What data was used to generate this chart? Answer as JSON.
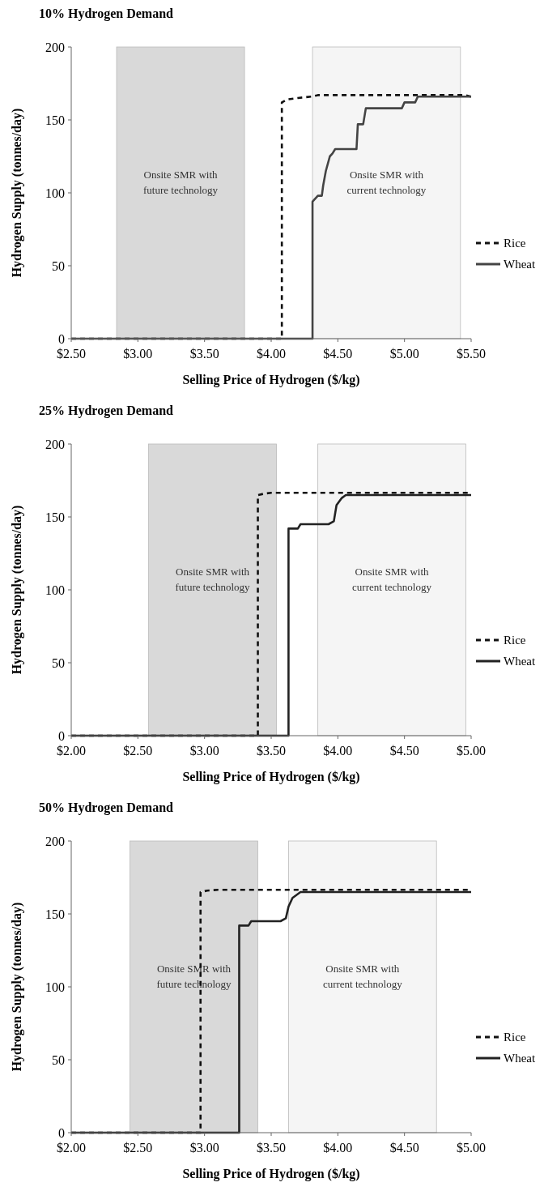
{
  "chart_data": [
    {
      "type": "line",
      "title": "10% Hydrogen Demand",
      "xlabel": "Selling Price of Hydrogen ($/kg)",
      "ylabel": "Hydrogen Supply (tonnes/day)",
      "xlim": [
        2.5,
        5.5
      ],
      "xticks": [
        {
          "value": 2.5,
          "label": "$2.50"
        },
        {
          "value": 3,
          "label": "$3.00"
        },
        {
          "value": 3.5,
          "label": "$3.50"
        },
        {
          "value": 4,
          "label": "$4.00"
        },
        {
          "value": 4.5,
          "label": "$4.50"
        },
        {
          "value": 5,
          "label": "$5.00"
        },
        {
          "value": 5.5,
          "label": "$5.50"
        }
      ],
      "ylim": [
        0,
        200
      ],
      "yticks": [
        0,
        50,
        100,
        150,
        200
      ],
      "grid": false,
      "legend": "right",
      "bands": [
        {
          "axis": "x",
          "from": 2.84,
          "to": 3.8,
          "label": "Onsite SMR with future technology",
          "color": "#d9d9d9"
        },
        {
          "axis": "x",
          "from": 4.31,
          "to": 5.42,
          "label": "Onsite SMR with current technology",
          "color": "#f5f5f5"
        }
      ],
      "series": [
        {
          "name": "Rice",
          "color": "#111111",
          "line_style": "dashed",
          "x": [
            2.5,
            4.08,
            4.08,
            4.12,
            4.2,
            4.3,
            4.35,
            5.45,
            5.5
          ],
          "values": [
            0,
            0,
            162,
            164,
            165,
            166,
            167,
            167,
            166
          ]
        },
        {
          "name": "Wheat",
          "color": "#444444",
          "line_style": "solid",
          "x": [
            2.5,
            4.31,
            4.31,
            4.35,
            4.38,
            4.39,
            4.41,
            4.44,
            4.46,
            4.48,
            4.64,
            4.65,
            4.69,
            4.71,
            4.98,
            5.0,
            5.08,
            5.1,
            5.5
          ],
          "values": [
            0,
            0,
            94,
            98,
            98,
            105,
            115,
            125,
            127,
            130,
            130,
            147,
            147,
            158,
            158,
            162,
            162,
            166,
            166
          ]
        }
      ]
    },
    {
      "type": "line",
      "title": "25% Hydrogen Demand",
      "xlabel": "Selling Price of Hydrogen ($/kg)",
      "ylabel": "Hydrogen Supply (tonnes/day)",
      "xlim": [
        2,
        5
      ],
      "xticks": [
        {
          "value": 2,
          "label": "$2.00"
        },
        {
          "value": 2.5,
          "label": "$2.50"
        },
        {
          "value": 3,
          "label": "$3.00"
        },
        {
          "value": 3.5,
          "label": "$3.50"
        },
        {
          "value": 4,
          "label": "$4.00"
        },
        {
          "value": 4.5,
          "label": "$4.50"
        },
        {
          "value": 5,
          "label": "$5.00"
        }
      ],
      "ylim": [
        0,
        200
      ],
      "yticks": [
        0,
        50,
        100,
        150,
        200
      ],
      "grid": false,
      "legend": "right",
      "bands": [
        {
          "axis": "x",
          "from": 2.58,
          "to": 3.54,
          "label": "Onsite SMR with future technology",
          "color": "#d9d9d9"
        },
        {
          "axis": "x",
          "from": 3.85,
          "to": 4.96,
          "label": "Onsite SMR with current technology",
          "color": "#f5f5f5"
        }
      ],
      "series": [
        {
          "name": "Rice",
          "color": "#111111",
          "line_style": "dashed",
          "x": [
            2,
            3.4,
            3.4,
            3.45,
            3.5,
            5
          ],
          "values": [
            0,
            0,
            165,
            166,
            166.5,
            166.5
          ]
        },
        {
          "name": "Wheat",
          "color": "#222222",
          "line_style": "solid",
          "x": [
            2,
            3.63,
            3.63,
            3.7,
            3.72,
            3.93,
            3.97,
            3.99,
            4.03,
            4.06,
            5
          ],
          "values": [
            0,
            0,
            142,
            142,
            145,
            145,
            147,
            158,
            163,
            165,
            165
          ]
        }
      ]
    },
    {
      "type": "line",
      "title": "50% Hydrogen Demand",
      "xlabel": "Selling Price of Hydrogen ($/kg)",
      "ylabel": "Hydrogen Supply (tonnes/day)",
      "xlim": [
        2,
        5
      ],
      "xticks": [
        {
          "value": 2,
          "label": "$2.00"
        },
        {
          "value": 2.5,
          "label": "$2.50"
        },
        {
          "value": 3,
          "label": "$3.00"
        },
        {
          "value": 3.5,
          "label": "$3.50"
        },
        {
          "value": 4,
          "label": "$4.00"
        },
        {
          "value": 4.5,
          "label": "$4.50"
        },
        {
          "value": 5,
          "label": "$5.00"
        }
      ],
      "ylim": [
        0,
        200
      ],
      "yticks": [
        0,
        50,
        100,
        150,
        200
      ],
      "grid": false,
      "legend": "right",
      "bands": [
        {
          "axis": "x",
          "from": 2.44,
          "to": 3.4,
          "label": "Onsite SMR with future technology",
          "color": "#d9d9d9"
        },
        {
          "axis": "x",
          "from": 3.63,
          "to": 4.74,
          "label": "Onsite SMR with current technology",
          "color": "#f5f5f5"
        }
      ],
      "series": [
        {
          "name": "Rice",
          "color": "#111111",
          "line_style": "dashed",
          "x": [
            2,
            2.97,
            2.97,
            3.02,
            3.1,
            5
          ],
          "values": [
            0,
            0,
            165,
            166,
            166.5,
            166.5
          ]
        },
        {
          "name": "Wheat",
          "color": "#222222",
          "line_style": "solid",
          "x": [
            2,
            3.26,
            3.26,
            3.33,
            3.35,
            3.57,
            3.61,
            3.63,
            3.66,
            3.72,
            5
          ],
          "values": [
            0,
            0,
            142,
            142,
            145,
            145,
            147,
            155,
            161,
            165,
            165
          ]
        }
      ]
    }
  ]
}
